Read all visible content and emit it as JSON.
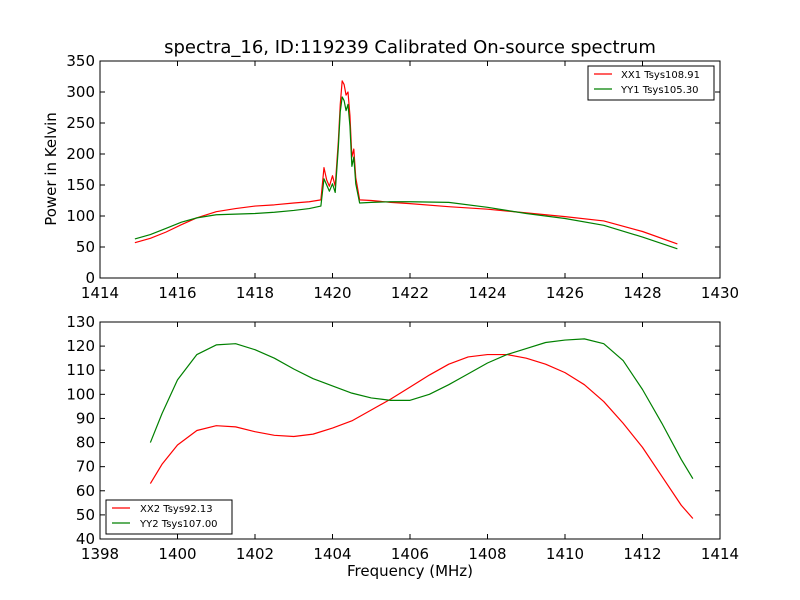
{
  "chart_data": [
    {
      "type": "line",
      "title": "spectra_16, ID:119239 Calibrated On-source spectrum",
      "xlabel": "",
      "ylabel": "Power in Kelvin",
      "xlim": [
        1414,
        1430
      ],
      "ylim": [
        0,
        350
      ],
      "xticks": [
        1414,
        1416,
        1418,
        1420,
        1422,
        1424,
        1426,
        1428,
        1430
      ],
      "yticks": [
        0,
        50,
        100,
        150,
        200,
        250,
        300,
        350
      ],
      "grid": false,
      "legend": "top-right",
      "series": [
        {
          "name": "XX1 Tsys108.91",
          "color": "#ff0000",
          "points": [
            [
              1414.9,
              57
            ],
            [
              1415.3,
              64
            ],
            [
              1415.7,
              74
            ],
            [
              1416.1,
              86
            ],
            [
              1416.5,
              97
            ],
            [
              1417.0,
              107
            ],
            [
              1417.5,
              112
            ],
            [
              1418.0,
              116
            ],
            [
              1418.5,
              118
            ],
            [
              1419.0,
              121
            ],
            [
              1419.4,
              123
            ],
            [
              1419.7,
              126
            ],
            [
              1419.78,
              178
            ],
            [
              1419.85,
              158
            ],
            [
              1419.92,
              148
            ],
            [
              1420.0,
              165
            ],
            [
              1420.07,
              148
            ],
            [
              1420.15,
              220
            ],
            [
              1420.2,
              280
            ],
            [
              1420.25,
              318
            ],
            [
              1420.3,
              312
            ],
            [
              1420.35,
              295
            ],
            [
              1420.4,
              300
            ],
            [
              1420.45,
              262
            ],
            [
              1420.5,
              195
            ],
            [
              1420.55,
              208
            ],
            [
              1420.6,
              162
            ],
            [
              1420.7,
              126
            ],
            [
              1421.0,
              125
            ],
            [
              1421.5,
              122
            ],
            [
              1422.0,
              120
            ],
            [
              1423.0,
              115
            ],
            [
              1424.0,
              111
            ],
            [
              1425.0,
              105
            ],
            [
              1426.0,
              99
            ],
            [
              1427.0,
              92
            ],
            [
              1428.0,
              75
            ],
            [
              1428.9,
              55
            ]
          ]
        },
        {
          "name": "YY1 Tsys105.30",
          "color": "#008000",
          "points": [
            [
              1414.9,
              63
            ],
            [
              1415.3,
              70
            ],
            [
              1415.7,
              80
            ],
            [
              1416.1,
              90
            ],
            [
              1416.5,
              97
            ],
            [
              1417.0,
              102
            ],
            [
              1417.5,
              103
            ],
            [
              1418.0,
              104
            ],
            [
              1418.5,
              106
            ],
            [
              1419.0,
              109
            ],
            [
              1419.4,
              112
            ],
            [
              1419.7,
              116
            ],
            [
              1419.78,
              160
            ],
            [
              1419.85,
              150
            ],
            [
              1419.92,
              140
            ],
            [
              1420.0,
              152
            ],
            [
              1420.07,
              138
            ],
            [
              1420.15,
              210
            ],
            [
              1420.2,
              268
            ],
            [
              1420.25,
              292
            ],
            [
              1420.3,
              286
            ],
            [
              1420.35,
              270
            ],
            [
              1420.4,
              280
            ],
            [
              1420.45,
              245
            ],
            [
              1420.5,
              180
            ],
            [
              1420.55,
              195
            ],
            [
              1420.6,
              152
            ],
            [
              1420.7,
              121
            ],
            [
              1421.0,
              122
            ],
            [
              1421.5,
              123
            ],
            [
              1422.0,
              123
            ],
            [
              1423.0,
              122
            ],
            [
              1424.0,
              114
            ],
            [
              1425.0,
              104
            ],
            [
              1426.0,
              96
            ],
            [
              1427.0,
              85
            ],
            [
              1428.0,
              66
            ],
            [
              1428.9,
              47
            ]
          ]
        }
      ]
    },
    {
      "type": "line",
      "title": "",
      "xlabel": "Frequency (MHz)",
      "ylabel": "",
      "xlim": [
        1398,
        1414
      ],
      "ylim": [
        40,
        130
      ],
      "xticks": [
        1398,
        1400,
        1402,
        1404,
        1406,
        1408,
        1410,
        1412,
        1414
      ],
      "yticks": [
        40,
        50,
        60,
        70,
        80,
        90,
        100,
        110,
        120,
        130
      ],
      "grid": false,
      "legend": "bottom-left",
      "series": [
        {
          "name": "XX2 Tsys92.13",
          "color": "#ff0000",
          "points": [
            [
              1399.3,
              63
            ],
            [
              1399.6,
              71
            ],
            [
              1400.0,
              79
            ],
            [
              1400.5,
              85
            ],
            [
              1401.0,
              87
            ],
            [
              1401.5,
              86.5
            ],
            [
              1402.0,
              84.5
            ],
            [
              1402.5,
              83
            ],
            [
              1403.0,
              82.5
            ],
            [
              1403.5,
              83.5
            ],
            [
              1404.0,
              86
            ],
            [
              1404.5,
              89
            ],
            [
              1405.0,
              93.5
            ],
            [
              1405.5,
              98
            ],
            [
              1406.0,
              103
            ],
            [
              1406.5,
              108
            ],
            [
              1407.0,
              112.5
            ],
            [
              1407.5,
              115.5
            ],
            [
              1408.0,
              116.5
            ],
            [
              1408.5,
              116.5
            ],
            [
              1409.0,
              115
            ],
            [
              1409.5,
              112.5
            ],
            [
              1410.0,
              109
            ],
            [
              1410.5,
              104
            ],
            [
              1411.0,
              97
            ],
            [
              1411.5,
              88
            ],
            [
              1412.0,
              78
            ],
            [
              1412.5,
              66
            ],
            [
              1413.0,
              54
            ],
            [
              1413.3,
              48.5
            ]
          ]
        },
        {
          "name": "YY2 Tsys107.00",
          "color": "#008000",
          "points": [
            [
              1399.3,
              80
            ],
            [
              1399.6,
              92
            ],
            [
              1400.0,
              106
            ],
            [
              1400.5,
              116.5
            ],
            [
              1401.0,
              120.5
            ],
            [
              1401.5,
              121
            ],
            [
              1402.0,
              118.5
            ],
            [
              1402.5,
              115
            ],
            [
              1403.0,
              110.5
            ],
            [
              1403.5,
              106.5
            ],
            [
              1404.0,
              103.5
            ],
            [
              1404.5,
              100.5
            ],
            [
              1405.0,
              98.5
            ],
            [
              1405.5,
              97.5
            ],
            [
              1406.0,
              97.5
            ],
            [
              1406.5,
              100
            ],
            [
              1407.0,
              104
            ],
            [
              1407.5,
              108.5
            ],
            [
              1408.0,
              113
            ],
            [
              1408.5,
              116.5
            ],
            [
              1409.0,
              119
            ],
            [
              1409.5,
              121.5
            ],
            [
              1410.0,
              122.5
            ],
            [
              1410.5,
              123
            ],
            [
              1411.0,
              121
            ],
            [
              1411.5,
              114
            ],
            [
              1412.0,
              102
            ],
            [
              1412.5,
              88
            ],
            [
              1413.0,
              73
            ],
            [
              1413.3,
              65
            ]
          ]
        }
      ]
    }
  ]
}
